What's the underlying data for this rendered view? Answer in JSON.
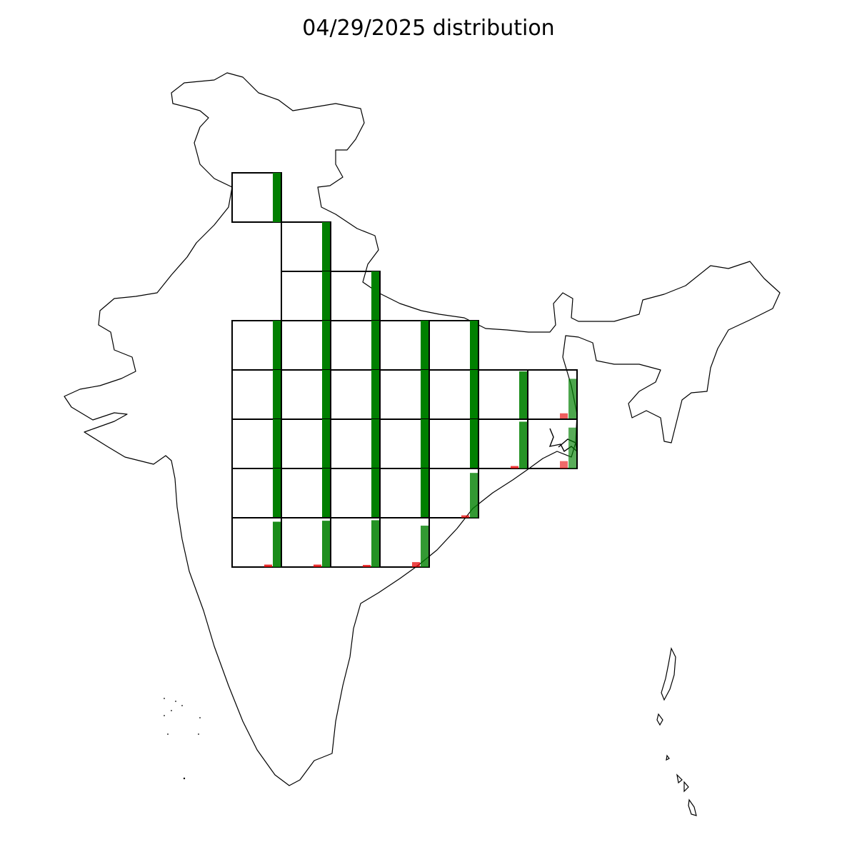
{
  "title": "04/29/2025 distribution",
  "colors": {
    "high": "#008000",
    "low": "#e60000",
    "cell_border": "#000000",
    "outline": "#000000"
  },
  "cells": [
    {
      "row": 0,
      "col": 0,
      "green": 1.0,
      "red": 0.0,
      "alpha": 1.0
    },
    {
      "row": 1,
      "col": 1,
      "green": 1.0,
      "red": 0.0,
      "alpha": 1.0
    },
    {
      "row": 2,
      "col": 1,
      "green": 1.0,
      "red": 0.0,
      "alpha": 1.0
    },
    {
      "row": 2,
      "col": 2,
      "green": 1.0,
      "red": 0.0,
      "alpha": 1.0
    },
    {
      "row": 3,
      "col": 0,
      "green": 1.0,
      "red": 0.0,
      "alpha": 1.0
    },
    {
      "row": 3,
      "col": 1,
      "green": 1.0,
      "red": 0.0,
      "alpha": 1.0
    },
    {
      "row": 3,
      "col": 2,
      "green": 1.0,
      "red": 0.0,
      "alpha": 1.0
    },
    {
      "row": 3,
      "col": 3,
      "green": 1.0,
      "red": 0.0,
      "alpha": 1.0
    },
    {
      "row": 3,
      "col": 4,
      "green": 1.0,
      "red": 0.0,
      "alpha": 1.0
    },
    {
      "row": 4,
      "col": 0,
      "green": 1.0,
      "red": 0.0,
      "alpha": 1.0
    },
    {
      "row": 4,
      "col": 1,
      "green": 1.0,
      "red": 0.0,
      "alpha": 1.0
    },
    {
      "row": 4,
      "col": 2,
      "green": 1.0,
      "red": 0.0,
      "alpha": 1.0
    },
    {
      "row": 4,
      "col": 3,
      "green": 1.0,
      "red": 0.0,
      "alpha": 1.0
    },
    {
      "row": 4,
      "col": 4,
      "green": 1.0,
      "red": 0.0,
      "alpha": 1.0
    },
    {
      "row": 4,
      "col": 5,
      "green": 0.97,
      "red": 0.0,
      "alpha": 0.9
    },
    {
      "row": 4,
      "col": 6,
      "green": 0.82,
      "red": 0.12,
      "alpha": 0.7
    },
    {
      "row": 5,
      "col": 0,
      "green": 1.0,
      "red": 0.0,
      "alpha": 1.0
    },
    {
      "row": 5,
      "col": 1,
      "green": 1.0,
      "red": 0.0,
      "alpha": 1.0
    },
    {
      "row": 5,
      "col": 2,
      "green": 1.0,
      "red": 0.0,
      "alpha": 1.0
    },
    {
      "row": 5,
      "col": 3,
      "green": 1.0,
      "red": 0.0,
      "alpha": 1.0
    },
    {
      "row": 5,
      "col": 4,
      "green": 1.0,
      "red": 0.0,
      "alpha": 1.0
    },
    {
      "row": 5,
      "col": 5,
      "green": 0.95,
      "red": 0.05,
      "alpha": 0.85
    },
    {
      "row": 5,
      "col": 6,
      "green": 0.83,
      "red": 0.15,
      "alpha": 0.65
    },
    {
      "row": 6,
      "col": 0,
      "green": 1.0,
      "red": 0.0,
      "alpha": 1.0
    },
    {
      "row": 6,
      "col": 1,
      "green": 1.0,
      "red": 0.0,
      "alpha": 1.0
    },
    {
      "row": 6,
      "col": 2,
      "green": 1.0,
      "red": 0.0,
      "alpha": 1.0
    },
    {
      "row": 6,
      "col": 3,
      "green": 1.0,
      "red": 0.0,
      "alpha": 1.0
    },
    {
      "row": 6,
      "col": 4,
      "green": 0.91,
      "red": 0.05,
      "alpha": 0.8
    },
    {
      "row": 7,
      "col": 0,
      "green": 0.92,
      "red": 0.05,
      "alpha": 0.9
    },
    {
      "row": 7,
      "col": 1,
      "green": 0.94,
      "red": 0.05,
      "alpha": 0.88
    },
    {
      "row": 7,
      "col": 2,
      "green": 0.95,
      "red": 0.03,
      "alpha": 0.86
    },
    {
      "row": 7,
      "col": 3,
      "green": 0.84,
      "red": 0.1,
      "alpha": 0.8
    }
  ]
}
